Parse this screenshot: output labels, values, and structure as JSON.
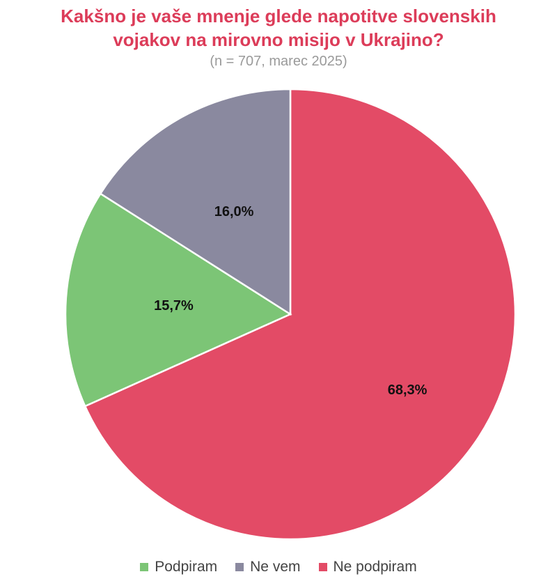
{
  "header": {
    "title_line1": "Kakšno je vaše mnenje glede napotitve slovenskih",
    "title_line2": "vojakov na mirovno misijo v Ukrajino?",
    "subtitle": "(n = 707, marec 2025)"
  },
  "colors": {
    "title": "#dc3c59",
    "subtitle": "#9a9a9a"
  },
  "chart_data": {
    "type": "pie",
    "title": "Kakšno je vaše mnenje glede napotitve slovenskih vojakov na mirovno misijo v Ukrajino?",
    "subtitle": "(n = 707, marec 2025)",
    "start_angle_deg": 0,
    "direction": "clockwise",
    "legend_position": "bottom",
    "slices": [
      {
        "name": "Ne podpiram",
        "value": 68.3,
        "label": "68,3%",
        "color": "#e34b66"
      },
      {
        "name": "Podpiram",
        "value": 15.7,
        "label": "15,7%",
        "color": "#7cc576"
      },
      {
        "name": "Ne vem",
        "value": 16.0,
        "label": "16,0%",
        "color": "#8a899f"
      }
    ]
  },
  "legend": {
    "items": [
      {
        "label": "Podpiram",
        "color": "#7cc576"
      },
      {
        "label": "Ne vem",
        "color": "#8a899f"
      },
      {
        "label": "Ne podpiram",
        "color": "#e34b66"
      }
    ]
  }
}
